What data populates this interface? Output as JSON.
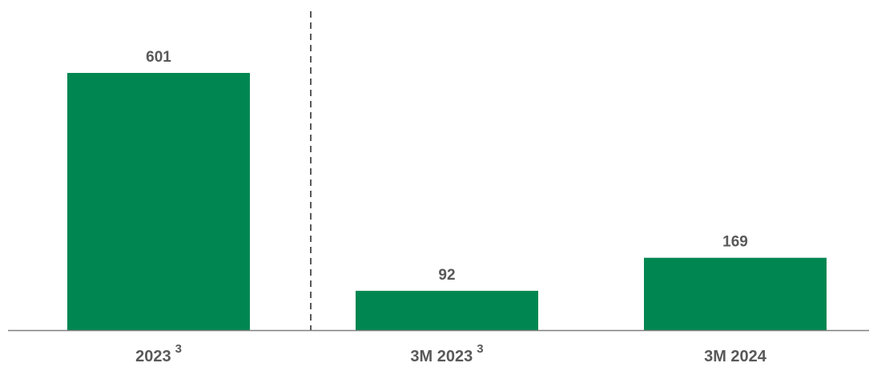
{
  "chart_data": {
    "type": "bar",
    "categories": [
      "2023",
      "3M 2023",
      "3M 2024"
    ],
    "category_footnotes": [
      "3",
      "3",
      ""
    ],
    "values": [
      601,
      92,
      169
    ],
    "value_labels": [
      "601",
      "92",
      "169"
    ],
    "title": "",
    "xlabel": "",
    "ylabel": "",
    "ylim": [
      0,
      700
    ],
    "grid": false,
    "legend": "none",
    "separator_after_category": 0,
    "colors": {
      "bar": "#008751",
      "axis": "#7f7f7f",
      "separator": "#595959",
      "text": "#595959"
    }
  }
}
